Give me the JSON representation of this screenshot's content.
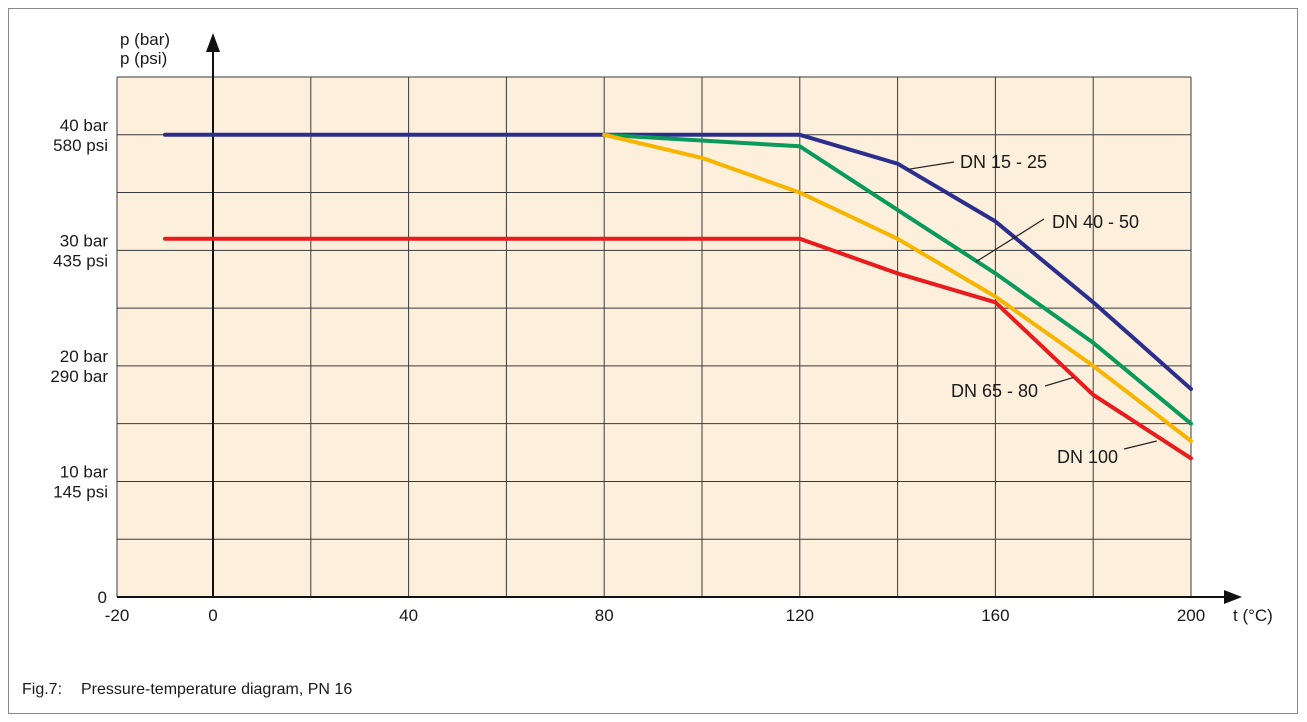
{
  "caption": {
    "figure": "Fig.7:",
    "text": "Pressure-temperature diagram, PN 16"
  },
  "chart_data": {
    "type": "line",
    "title": "",
    "xlabel": "t (°C)",
    "ylabel_lines": [
      "p (bar)",
      "p (psi)"
    ],
    "xlim": [
      -20,
      200
    ],
    "ylim": [
      0,
      45
    ],
    "x_tick_values": [
      -20,
      0,
      40,
      80,
      120,
      160,
      200
    ],
    "x_tick_labels": [
      "-20",
      "0",
      "40",
      "80",
      "120",
      "160",
      "200"
    ],
    "x_gridlines": [
      -20,
      0,
      20,
      40,
      60,
      80,
      100,
      120,
      140,
      160,
      180,
      200
    ],
    "y_gridlines": [
      0,
      5,
      10,
      15,
      20,
      25,
      30,
      35,
      40,
      45
    ],
    "y_tick_labels": [
      {
        "value": 40,
        "lines": [
          "40 bar",
          "580 psi"
        ]
      },
      {
        "value": 30,
        "lines": [
          "30 bar",
          "435 psi"
        ]
      },
      {
        "value": 20,
        "lines": [
          "20 bar",
          "290 bar"
        ]
      },
      {
        "value": 10,
        "lines": [
          "10 bar",
          "145 psi"
        ]
      },
      {
        "value": 0,
        "lines": [
          "0"
        ]
      }
    ],
    "grid": true,
    "plot_background": "#fcefdc",
    "grid_color": "#3a3a3a",
    "series": [
      {
        "name": "DN 15 - 25",
        "color": "#2b2e8c",
        "points": [
          [
            -10,
            40
          ],
          [
            120,
            40
          ],
          [
            140,
            37.5
          ],
          [
            160,
            32.5
          ],
          [
            180,
            25.5
          ],
          [
            200,
            18
          ]
        ]
      },
      {
        "name": "DN 40 - 50",
        "color": "#0a9a5c",
        "points": [
          [
            80,
            40
          ],
          [
            120,
            39
          ],
          [
            140,
            33.5
          ],
          [
            160,
            28
          ],
          [
            180,
            22
          ],
          [
            200,
            15
          ]
        ]
      },
      {
        "name": "DN 65 - 80",
        "color": "#f7b500",
        "points": [
          [
            80,
            40
          ],
          [
            100,
            38
          ],
          [
            120,
            35
          ],
          [
            140,
            31
          ],
          [
            160,
            26
          ],
          [
            180,
            20
          ],
          [
            200,
            13.5
          ]
        ]
      },
      {
        "name": "DN 100",
        "color": "#e81c1c",
        "points": [
          [
            -10,
            31
          ],
          [
            120,
            31
          ],
          [
            140,
            28
          ],
          [
            160,
            25.5
          ],
          [
            180,
            17.5
          ],
          [
            200,
            12
          ]
        ]
      }
    ],
    "annotations": [
      {
        "text": "DN 15 - 25",
        "series": "DN 15 - 25",
        "anchor": [
          142,
          37
        ]
      },
      {
        "text": "DN 40 - 50",
        "series": "DN 40 - 50",
        "anchor": [
          156,
          29
        ]
      },
      {
        "text": "DN 65 - 80",
        "series": "DN 65 - 80",
        "anchor": [
          176,
          19
        ]
      },
      {
        "text": "DN 100",
        "series": "DN 100",
        "anchor": [
          193,
          13.5
        ]
      }
    ]
  }
}
